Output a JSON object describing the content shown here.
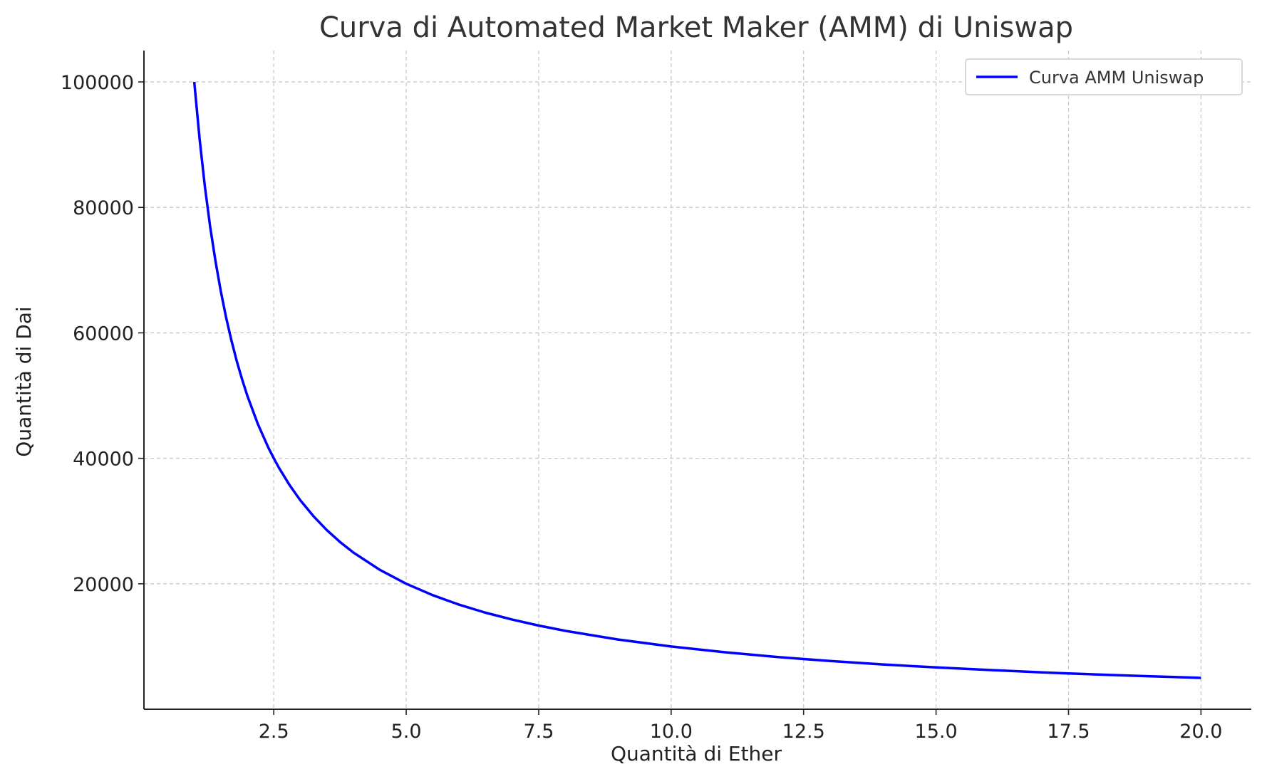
{
  "chart_data": {
    "type": "line",
    "title": "Curva di Automated Market Maker (AMM) di Uniswap",
    "xlabel": "Quantità di Ether",
    "ylabel": "Quantità di Dai",
    "xlim": [
      0.05,
      20.95
    ],
    "ylim": [
      0,
      105000
    ],
    "xticks": [
      2.5,
      5.0,
      7.5,
      10.0,
      12.5,
      15.0,
      17.5,
      20.0
    ],
    "xtick_labels": [
      "2.5",
      "5.0",
      "7.5",
      "10.0",
      "12.5",
      "15.0",
      "17.5",
      "20.0"
    ],
    "yticks": [
      20000,
      40000,
      60000,
      80000,
      100000
    ],
    "ytick_labels": [
      "20000",
      "40000",
      "60000",
      "80000",
      "100000"
    ],
    "grid": true,
    "legend_position": "top-right",
    "series": [
      {
        "name": "Curva AMM Uniswap",
        "color": "#0000ff",
        "x": [
          1.0,
          1.1,
          1.2,
          1.3,
          1.4,
          1.5,
          1.6,
          1.7,
          1.8,
          1.9,
          2.0,
          2.2,
          2.4,
          2.5,
          2.6,
          2.8,
          3.0,
          3.25,
          3.5,
          3.75,
          4.0,
          4.5,
          5.0,
          5.5,
          6.0,
          6.5,
          7.0,
          7.5,
          8.0,
          9.0,
          10.0,
          11.0,
          12.0,
          12.5,
          13.0,
          14.0,
          15.0,
          16.0,
          17.0,
          17.5,
          18.0,
          19.0,
          20.0
        ],
        "y": [
          100000,
          90909,
          83333,
          76923,
          71429,
          66667,
          62500,
          58824,
          55556,
          52632,
          50000,
          45455,
          41667,
          40000,
          38462,
          35714,
          33333,
          30769,
          28571,
          26667,
          25000,
          22222,
          20000,
          18182,
          16667,
          15385,
          14286,
          13333,
          12500,
          11111,
          10000,
          9091,
          8333,
          8000,
          7692,
          7143,
          6667,
          6250,
          5882,
          5714,
          5556,
          5263,
          5000
        ]
      }
    ]
  }
}
